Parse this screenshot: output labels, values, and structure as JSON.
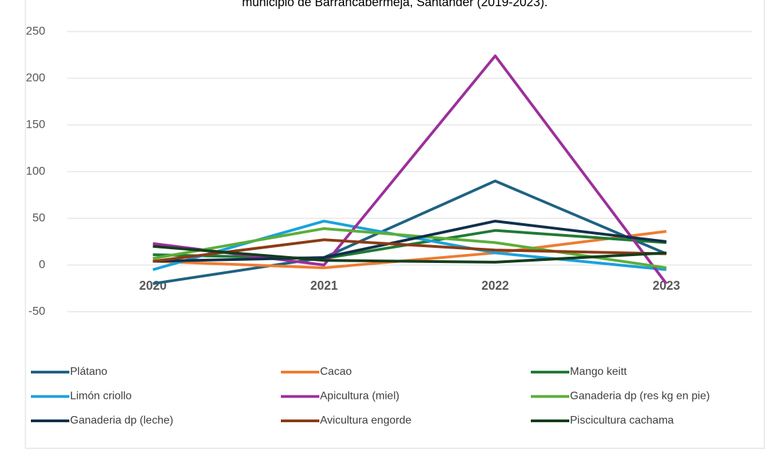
{
  "chart_data": {
    "type": "line",
    "title": "municipio de Barrancabermeja, Santander (2019-2023).",
    "categories": [
      "2020",
      "2021",
      "2022",
      "2023"
    ],
    "ylim": [
      -50,
      250
    ],
    "yticks": [
      -50,
      0,
      50,
      100,
      150,
      200,
      250
    ],
    "grid": true,
    "legend": "bottom",
    "series": [
      {
        "name": "Plátano",
        "color": "#1f6281",
        "values": [
          -20,
          8,
          90,
          12
        ]
      },
      {
        "name": "Cacao",
        "color": "#ed7d31",
        "values": [
          4,
          -3,
          13,
          36
        ]
      },
      {
        "name": "Mango keitt",
        "color": "#217a34",
        "values": [
          11,
          7,
          37,
          24
        ]
      },
      {
        "name": "Limón criollo",
        "color": "#1ba1dc",
        "values": [
          -5,
          47,
          13,
          -5
        ]
      },
      {
        "name": "Apicultura (miel)",
        "color": "#9c2f9c",
        "values": [
          23,
          0,
          224,
          -20
        ]
      },
      {
        "name": "Ganaderia dp (res kg en pie)",
        "color": "#5bae3b",
        "values": [
          7,
          39,
          24,
          -3
        ]
      },
      {
        "name": "Ganaderia dp (leche)",
        "color": "#10304a",
        "values": [
          4,
          8,
          47,
          25
        ]
      },
      {
        "name": "Avicultura engorde",
        "color": "#8c3b15",
        "values": [
          4,
          27,
          16,
          12
        ]
      },
      {
        "name": "Piscicultura cachama",
        "color": "#143d1c",
        "values": [
          20,
          5,
          3,
          13
        ]
      }
    ]
  }
}
